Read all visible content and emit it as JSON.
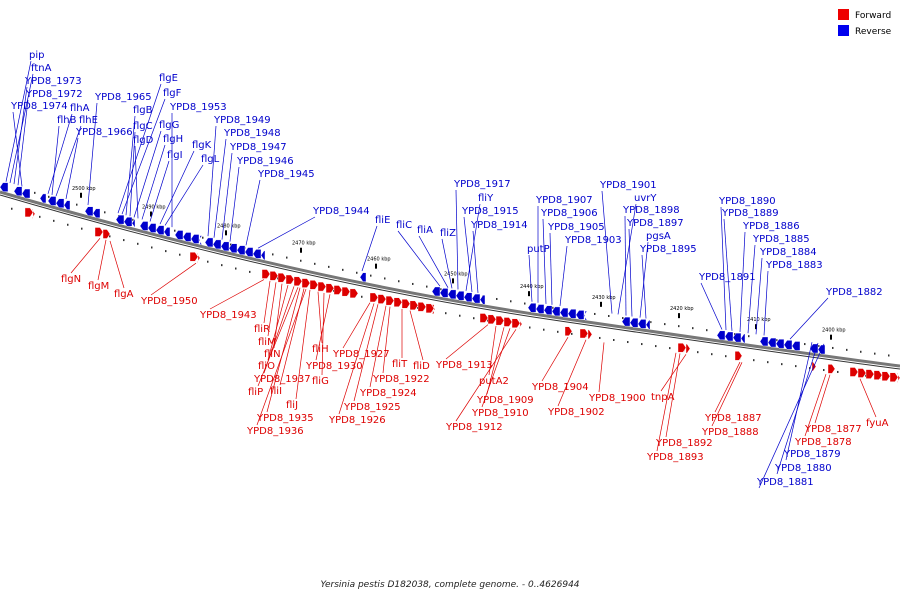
{
  "title": "Yersinia pestis D182038, complete genome. - 0..4626944",
  "legend": [
    {
      "label": "Forward",
      "color": "#ee0000"
    },
    {
      "label": "Reverse",
      "color": "#0000ee"
    }
  ],
  "colors": {
    "forward": "#dd0000",
    "reverse": "#0000cc",
    "backbone": "#777777"
  },
  "ticks": [
    "2500 kbp",
    "2490 kbp",
    "2480 kbp",
    "2470 kbp",
    "2460 kbp",
    "2450 kbp",
    "2440 kbp",
    "2430 kbp",
    "2420 kbp",
    "2410 kbp",
    "2400 kbp"
  ],
  "reverse_labels": [
    "pip",
    "ftnA",
    "YPD8_1973",
    "YPD8_1972",
    "YPD8_1974",
    "flhA",
    "flhB",
    "flhE",
    "YPD8_1966",
    "YPD8_1965",
    "flgE",
    "flgF",
    "flgB",
    "flgC",
    "flgG",
    "flgD",
    "flgH",
    "flgI",
    "flgK",
    "flgL",
    "YPD8_1953",
    "YPD8_1949",
    "YPD8_1948",
    "YPD8_1947",
    "YPD8_1946",
    "YPD8_1945",
    "YPD8_1944",
    "fliE",
    "fliC",
    "fliA",
    "fliZ",
    "YPD8_1917",
    "fliY",
    "YPD8_1915",
    "YPD8_1914",
    "putP",
    "YPD8_1907",
    "YPD8_1906",
    "YPD8_1905",
    "YPD8_1903",
    "YPD8_1901",
    "uvrY",
    "YPD8_1898",
    "YPD8_1897",
    "pgsA",
    "YPD8_1895",
    "YPD8_1891",
    "YPD8_1890",
    "YPD8_1889",
    "YPD8_1886",
    "YPD8_1885",
    "YPD8_1884",
    "YPD8_1883",
    "YPD8_1882",
    "YPD8_1879",
    "YPD8_1880",
    "YPD8_1881"
  ],
  "forward_labels": [
    "flgN",
    "flgM",
    "flgA",
    "YPD8_1950",
    "YPD8_1943",
    "fliR",
    "fliM",
    "fliN",
    "fliO",
    "YPD8_1937",
    "fliP",
    "fliI",
    "fliJ",
    "YPD8_1935",
    "YPD8_1936",
    "fliH",
    "fliG",
    "YPD8_1930",
    "YPD8_1927",
    "fliT",
    "fliD",
    "YPD8_1922",
    "YPD8_1924",
    "YPD8_1925",
    "YPD8_1926",
    "YPD8_1913",
    "putA2",
    "YPD8_1909",
    "YPD8_1910",
    "YPD8_1912",
    "YPD8_1904",
    "YPD8_1902",
    "YPD8_1900",
    "tnpA",
    "YPD8_1887",
    "YPD8_1888",
    "YPD8_1892",
    "YPD8_1893",
    "YPD8_1877",
    "YPD8_1878",
    "fyuA"
  ]
}
